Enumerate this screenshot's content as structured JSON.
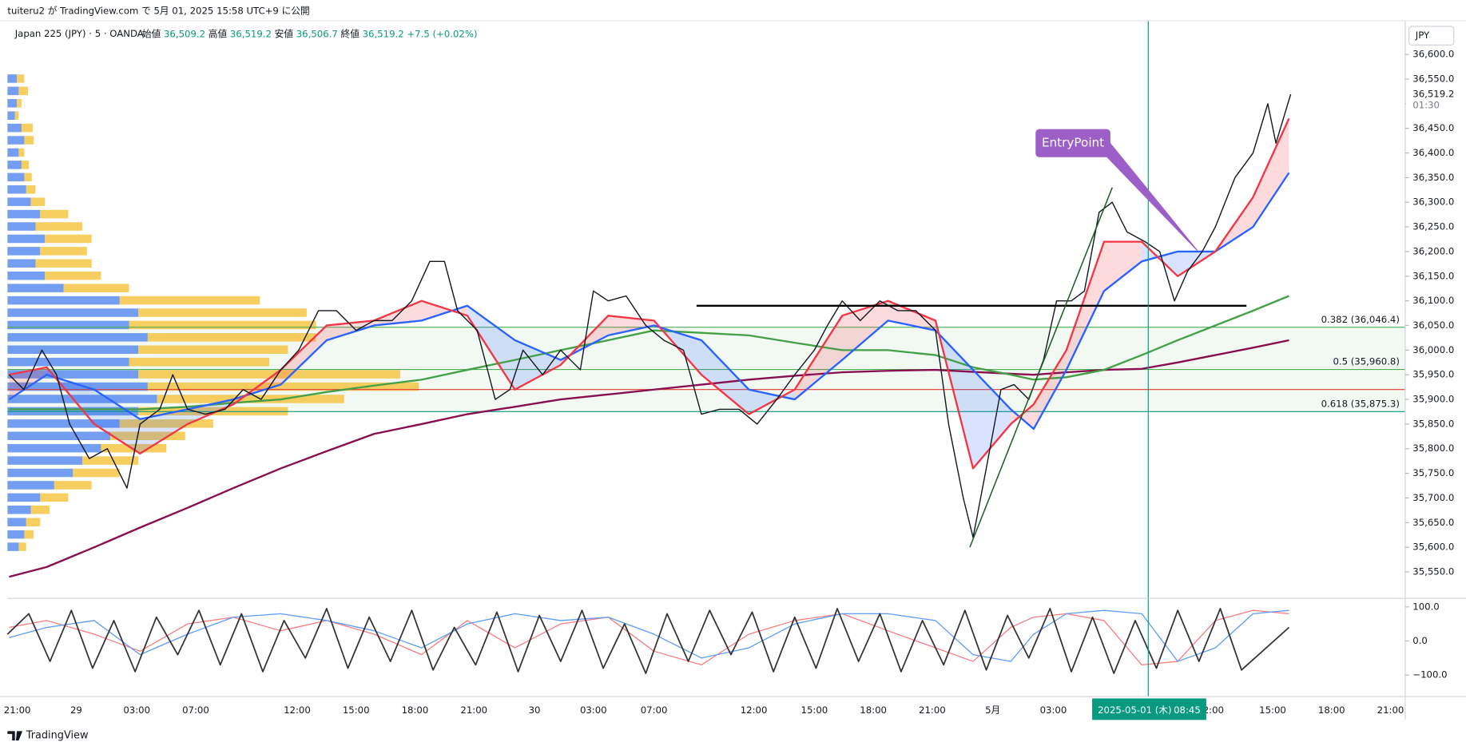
{
  "header": {
    "published": "tuiteru2 が TradingView.com で 5月 01, 2025 15:58 UTC+9 に公開",
    "symbol": "Japan 225 (JPY) · 5 · OANDA",
    "ohlc": [
      {
        "label": "始値",
        "value": "36,509.2"
      },
      {
        "label": "高値",
        "value": "36,519.2"
      },
      {
        "label": "安値",
        "value": "36,506.7"
      },
      {
        "label": "終値",
        "value": "36,519.2"
      }
    ],
    "change": "+7.5 (+0.02%)"
  },
  "footer": {
    "brand": "TradingView"
  },
  "chart_data": {
    "type": "line",
    "currency": "JPY",
    "xlim": [
      0,
      854
    ],
    "xticks": [
      {
        "value": 6,
        "label": "21:00"
      },
      {
        "value": 42,
        "label": "29"
      },
      {
        "value": 79,
        "label": "03:00"
      },
      {
        "value": 115,
        "label": "07:00"
      },
      {
        "value": 177,
        "label": "12:00"
      },
      {
        "value": 213,
        "label": "15:00"
      },
      {
        "value": 249,
        "label": "18:00"
      },
      {
        "value": 285,
        "label": "21:00"
      },
      {
        "value": 322,
        "label": "30"
      },
      {
        "value": 358,
        "label": "03:00"
      },
      {
        "value": 395,
        "label": "07:00"
      },
      {
        "value": 456,
        "label": "12:00"
      },
      {
        "value": 493,
        "label": "15:00"
      },
      {
        "value": 529,
        "label": "18:00"
      },
      {
        "value": 565,
        "label": "21:00"
      },
      {
        "value": 602,
        "label": "5月"
      },
      {
        "value": 639,
        "label": "03:00"
      },
      {
        "value": 735,
        "label": "12:00"
      },
      {
        "value": 773,
        "label": "15:00"
      },
      {
        "value": 809,
        "label": "18:00"
      },
      {
        "value": 845,
        "label": "21:00"
      }
    ],
    "ylim": [
      35500,
      36657
    ],
    "yticks": [
      {
        "value": 35550,
        "label": "35,550.0"
      },
      {
        "value": 35600,
        "label": "35,600.0"
      },
      {
        "value": 35650,
        "label": "35,650.0"
      },
      {
        "value": 35700,
        "label": "35,700.0"
      },
      {
        "value": 35750,
        "label": "35,750.0"
      },
      {
        "value": 35800,
        "label": "35,800.0"
      },
      {
        "value": 35850,
        "label": "35,850.0"
      },
      {
        "value": 35900,
        "label": "35,900.0"
      },
      {
        "value": 35950,
        "label": "35,950.0"
      },
      {
        "value": 36000,
        "label": "36,000.0"
      },
      {
        "value": 36050,
        "label": "36,050.0"
      },
      {
        "value": 36100,
        "label": "36,100.0"
      },
      {
        "value": 36150,
        "label": "36,150.0"
      },
      {
        "value": 36200,
        "label": "36,200.0"
      },
      {
        "value": 36250,
        "label": "36,250.0"
      },
      {
        "value": 36300,
        "label": "36,300.0"
      },
      {
        "value": 36350,
        "label": "36,350.0"
      },
      {
        "value": 36400,
        "label": "36,400.0"
      },
      {
        "value": 36450,
        "label": "36,450.0"
      },
      {
        "value": 36500,
        "label": "36,500.0"
      },
      {
        "value": 36550,
        "label": "36,550.0"
      },
      {
        "value": 36600,
        "label": "36,600.0"
      }
    ],
    "last_price": {
      "value": 36519.2,
      "label": "36,519.2",
      "countdown": "01:30"
    },
    "series": [
      {
        "color": "#131722",
        "x": [
          1,
          10,
          21,
          30,
          38,
          50,
          61,
          73,
          81,
          93,
          101,
          110,
          121,
          133,
          144,
          155,
          167,
          178,
          190,
          201,
          213,
          224,
          235,
          247,
          258,
          267,
          275,
          287,
          298,
          307,
          315,
          327,
          338,
          350,
          358,
          367,
          378,
          390,
          401,
          413,
          424,
          435,
          447,
          458,
          470,
          481,
          493,
          501,
          510,
          521,
          533,
          544,
          555,
          567,
          575,
          584,
          590,
          598,
          607,
          615,
          624,
          633,
          641,
          650,
          658,
          667,
          675,
          684,
          695,
          704,
          713,
          721,
          730,
          738,
          750,
          761,
          770,
          775,
          784
        ],
        "values": [
          35950,
          35920,
          36000,
          35950,
          35850,
          35780,
          35800,
          35720,
          35850,
          35880,
          35950,
          35880,
          35870,
          35880,
          35920,
          35900,
          35960,
          36000,
          36080,
          36080,
          36040,
          36060,
          36060,
          36100,
          36180,
          36180,
          36080,
          36040,
          35900,
          35920,
          36000,
          35950,
          36000,
          35960,
          36120,
          36100,
          36110,
          36050,
          36020,
          36000,
          35870,
          35880,
          35880,
          35850,
          35900,
          35950,
          36000,
          36050,
          36100,
          36060,
          36100,
          36080,
          36080,
          36040,
          35850,
          35700,
          35620,
          35760,
          35920,
          35930,
          35900,
          35980,
          36100,
          36100,
          36120,
          36280,
          36300,
          36240,
          36220,
          36200,
          36100,
          36160,
          36200,
          36250,
          36350,
          36400,
          36500,
          36420,
          36519.2
        ]
      },
      {
        "color": "#f23645",
        "x": [
          1,
          24,
          53,
          81,
          110,
          138,
          167,
          195,
          224,
          253,
          281,
          310,
          338,
          367,
          395,
          424,
          453,
          481,
          510,
          538,
          567,
          590,
          613,
          627,
          647,
          670,
          693,
          715,
          738,
          761,
          783
        ],
        "values": [
          35950,
          35965,
          35850,
          35790,
          35850,
          35890,
          35960,
          36050,
          36060,
          36100,
          36070,
          35920,
          35970,
          36070,
          36060,
          35950,
          35870,
          35920,
          36070,
          36100,
          36060,
          35760,
          35850,
          35890,
          36000,
          36220,
          36220,
          36150,
          36200,
          36310,
          36470
        ]
      },
      {
        "color": "#2962ff",
        "x": [
          1,
          24,
          53,
          81,
          110,
          138,
          167,
          195,
          224,
          253,
          281,
          310,
          338,
          367,
          395,
          424,
          453,
          481,
          510,
          538,
          567,
          590,
          613,
          627,
          647,
          670,
          693,
          715,
          738,
          761,
          783
        ],
        "values": [
          35900,
          35950,
          35920,
          35860,
          35880,
          35900,
          35930,
          36020,
          36050,
          36060,
          36090,
          36020,
          35980,
          36030,
          36050,
          36020,
          35920,
          35900,
          35980,
          36060,
          36040,
          35960,
          35880,
          35840,
          35960,
          36120,
          36180,
          36200,
          36200,
          36250,
          36360
        ]
      },
      {
        "color": "#43a047",
        "x": [
          1,
          24,
          53,
          81,
          110,
          138,
          167,
          195,
          224,
          253,
          281,
          310,
          338,
          367,
          395,
          424,
          453,
          481,
          510,
          538,
          567,
          590,
          613,
          627,
          647,
          670,
          693,
          715,
          738,
          761,
          783
        ],
        "values": [
          35880,
          35880,
          35880,
          35880,
          35885,
          35893,
          35900,
          35915,
          35928,
          35940,
          35960,
          35980,
          36000,
          36020,
          36040,
          36035,
          36030,
          36015,
          36000,
          36000,
          35990,
          35965,
          35950,
          35940,
          35945,
          35960,
          35990,
          36020,
          36050,
          36080,
          36110
        ]
      },
      {
        "color": "#880e4f",
        "x": [
          1,
          24,
          53,
          81,
          110,
          138,
          167,
          195,
          224,
          253,
          281,
          310,
          338,
          367,
          395,
          424,
          453,
          481,
          510,
          538,
          567,
          590,
          613,
          627,
          647,
          670,
          693,
          715,
          738,
          761,
          783
        ],
        "values": [
          35540,
          35560,
          35600,
          35640,
          35680,
          35720,
          35760,
          35795,
          35830,
          35850,
          35870,
          35885,
          35900,
          35910,
          35920,
          35930,
          35940,
          35948,
          35955,
          35958,
          35960,
          35956,
          35952,
          35950,
          35955,
          35960,
          35962,
          35975,
          35990,
          36005,
          36020
        ]
      }
    ],
    "fib_levels": [
      {
        "value": 36046.4,
        "label": "0.382 (36,046.4)",
        "color": "#4caf50"
      },
      {
        "value": 35960.8,
        "label": "0.5 (35,960.8)",
        "color": "#4caf50"
      },
      {
        "value": 35875.3,
        "label": "0.618 (35,875.3)",
        "color": "#089981"
      }
    ],
    "red_level": {
      "value": 35920,
      "color": "#e53935"
    },
    "black_level": {
      "value": 36090,
      "x": [
        421,
        757
      ],
      "color": "#000000"
    },
    "trendline": {
      "x": [
        588,
        675
      ],
      "values": [
        35600,
        36330
      ],
      "color": "#1b5e20"
    },
    "annotation": {
      "text": "EntryPoint",
      "x": 651,
      "y": 36420,
      "target_x": 727,
      "target_y": 36202,
      "color": "#9c5fc7"
    },
    "crosshair": {
      "x": 697,
      "date": "2025-05-01 (木)",
      "time": "08:45",
      "color": "#089981"
    },
    "volume_profile": {
      "prices": [
        36550,
        36525,
        36500,
        36475,
        36450,
        36425,
        36400,
        36375,
        36350,
        36325,
        36300,
        36275,
        36250,
        36225,
        36200,
        36175,
        36150,
        36125,
        36100,
        36075,
        36050,
        36025,
        36000,
        35975,
        35950,
        35925,
        35900,
        35875,
        35850,
        35825,
        35800,
        35775,
        35750,
        35725,
        35700,
        35675,
        35650,
        35625,
        35600
      ],
      "up": [
        10,
        12,
        10,
        8,
        15,
        18,
        12,
        15,
        18,
        20,
        25,
        35,
        30,
        40,
        35,
        30,
        40,
        60,
        120,
        140,
        130,
        150,
        140,
        130,
        140,
        150,
        160,
        140,
        120,
        110,
        100,
        80,
        70,
        50,
        35,
        25,
        20,
        18,
        12
      ],
      "down": [
        8,
        10,
        5,
        4,
        12,
        10,
        6,
        8,
        8,
        10,
        15,
        30,
        50,
        50,
        50,
        60,
        60,
        70,
        150,
        180,
        200,
        180,
        160,
        150,
        280,
        290,
        200,
        160,
        100,
        80,
        70,
        60,
        50,
        40,
        30,
        20,
        15,
        10,
        8
      ],
      "up_color": "#5b8def",
      "down_color": "#f6c544"
    },
    "oscillator": {
      "ylim": [
        -163,
        125
      ],
      "yticks": [
        {
          "value": 100,
          "label": "100.0"
        },
        {
          "value": 0,
          "label": "0.0"
        },
        {
          "value": -100,
          "label": "−100.0"
        }
      ],
      "series": [
        {
          "color": "#f77c80",
          "x": [
            1,
            24,
            53,
            81,
            110,
            138,
            167,
            195,
            224,
            253,
            281,
            310,
            338,
            367,
            395,
            424,
            453,
            481,
            510,
            538,
            567,
            590,
            613,
            627,
            647,
            670,
            693,
            715,
            738,
            761,
            783
          ],
          "values": [
            40,
            60,
            20,
            -30,
            50,
            70,
            30,
            60,
            20,
            -40,
            60,
            -20,
            50,
            70,
            -30,
            -70,
            20,
            60,
            80,
            30,
            -20,
            -60,
            40,
            70,
            80,
            60,
            -70,
            -60,
            60,
            90,
            80
          ]
        },
        {
          "color": "#5b9cf6",
          "x": [
            1,
            24,
            53,
            81,
            110,
            138,
            167,
            195,
            224,
            253,
            281,
            310,
            338,
            367,
            395,
            424,
            453,
            481,
            510,
            538,
            567,
            590,
            613,
            627,
            647,
            670,
            693,
            715,
            738,
            761,
            783
          ],
          "values": [
            10,
            40,
            60,
            -40,
            20,
            70,
            80,
            60,
            30,
            -20,
            50,
            80,
            60,
            70,
            20,
            -50,
            -20,
            50,
            80,
            80,
            60,
            -40,
            -60,
            20,
            80,
            90,
            80,
            -60,
            -20,
            80,
            90
          ]
        },
        {
          "color": "#333333",
          "x": [
            0,
            13,
            26,
            39,
            52,
            65,
            78,
            91,
            104,
            117,
            130,
            143,
            156,
            169,
            182,
            195,
            208,
            221,
            234,
            247,
            260,
            273,
            286,
            299,
            312,
            325,
            338,
            351,
            364,
            377,
            390,
            403,
            416,
            429,
            442,
            455,
            468,
            481,
            494,
            507,
            520,
            533,
            546,
            559,
            572,
            585,
            598,
            611,
            624,
            637,
            650,
            663,
            676,
            689,
            702,
            715,
            728,
            741,
            754,
            783
          ],
          "values": [
            20,
            80,
            -60,
            90,
            -80,
            60,
            -90,
            70,
            -40,
            90,
            -70,
            80,
            -90,
            60,
            -50,
            95,
            -80,
            70,
            -60,
            90,
            -85,
            40,
            -70,
            85,
            -90,
            75,
            -60,
            90,
            -80,
            50,
            -95,
            80,
            -60,
            90,
            -40,
            85,
            -90,
            70,
            -80,
            95,
            -60,
            80,
            -90,
            60,
            -70,
            90,
            -85,
            75,
            -50,
            95,
            -90,
            70,
            -95,
            60,
            -80,
            90,
            -60,
            95,
            -85,
            40
          ]
        }
      ]
    }
  }
}
